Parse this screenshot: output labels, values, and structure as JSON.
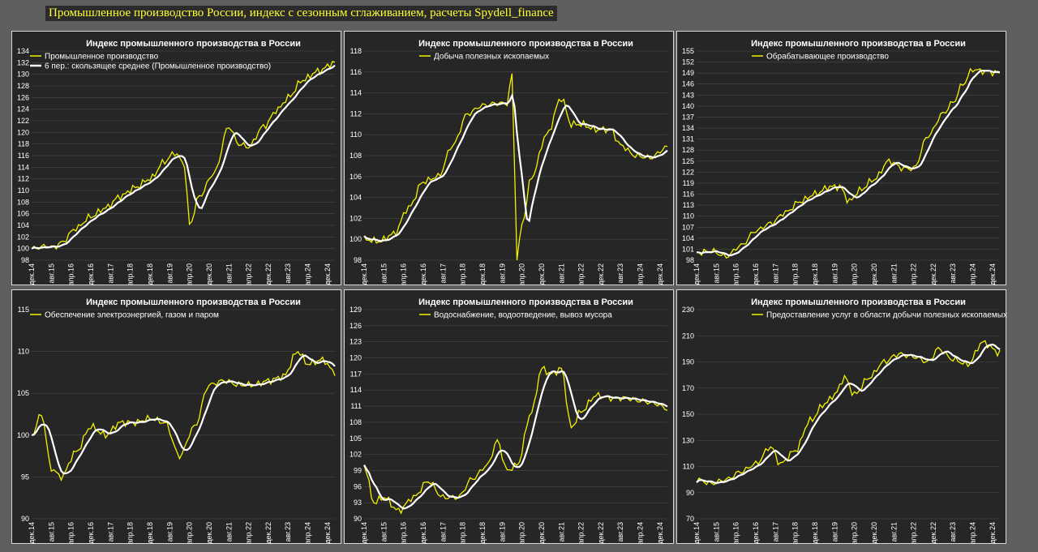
{
  "header": {
    "title": "Промышленное производство России, индекс с сезонным сглаживанием, расчеты Spydell_finance"
  },
  "colors": {
    "actual": "#f2f200",
    "smoothed": "#ffffff",
    "panel_bg": "#262626",
    "page_bg": "#5f5f5f"
  },
  "x_labels": [
    "дек.14",
    "авг.15",
    "апр.16",
    "дек.16",
    "авг.17",
    "апр.18",
    "дек.18",
    "авг.19",
    "апр.20",
    "дек.20",
    "авг.21",
    "апр.22",
    "дек.22",
    "авг.23",
    "апр.24",
    "дек.24"
  ],
  "chart_data": [
    {
      "type": "line",
      "title": "Индекс промышленного производства в России",
      "ylim": [
        98,
        134
      ],
      "yticks": [
        98,
        100,
        102,
        104,
        106,
        108,
        110,
        112,
        114,
        116,
        118,
        120,
        122,
        124,
        126,
        128,
        130,
        132,
        134
      ],
      "legend": [
        "Промышленное производство",
        "6 пер.: скользящее среднее (Промышленное производство)"
      ],
      "x_start": "2014-12",
      "x_end": "2025-03",
      "keypoints": [
        [
          0,
          100
        ],
        [
          6,
          100.4
        ],
        [
          9,
          100.2
        ],
        [
          12,
          101
        ],
        [
          18,
          103.5
        ],
        [
          24,
          105.5
        ],
        [
          30,
          107
        ],
        [
          36,
          109
        ],
        [
          42,
          110.5
        ],
        [
          48,
          112
        ],
        [
          54,
          115
        ],
        [
          58,
          116.5
        ],
        [
          62,
          114.5
        ],
        [
          64,
          104
        ],
        [
          68,
          109
        ],
        [
          74,
          113
        ],
        [
          80,
          121
        ],
        [
          84,
          118
        ],
        [
          88,
          117.5
        ],
        [
          94,
          121
        ],
        [
          100,
          124
        ],
        [
          104,
          126
        ],
        [
          110,
          129
        ],
        [
          116,
          130.5
        ],
        [
          123,
          132
        ]
      ]
    },
    {
      "type": "line",
      "title": "Индекс промышленного производства в России",
      "ylim": [
        98,
        118
      ],
      "yticks": [
        98,
        100,
        102,
        104,
        106,
        108,
        110,
        112,
        114,
        116,
        118
      ],
      "legend": [
        "Добыча полезных ископаемых"
      ],
      "x_start": "2014-12",
      "x_end": "2025-03",
      "keypoints": [
        [
          0,
          100
        ],
        [
          6,
          99.8
        ],
        [
          12,
          100.5
        ],
        [
          18,
          103
        ],
        [
          24,
          105.5
        ],
        [
          30,
          106
        ],
        [
          36,
          109
        ],
        [
          42,
          112
        ],
        [
          48,
          112.8
        ],
        [
          54,
          113
        ],
        [
          58,
          113
        ],
        [
          60,
          115.8
        ],
        [
          62,
          98
        ],
        [
          64,
          101.5
        ],
        [
          68,
          106
        ],
        [
          74,
          110
        ],
        [
          80,
          113.5
        ],
        [
          84,
          111
        ],
        [
          88,
          111
        ],
        [
          94,
          110.5
        ],
        [
          100,
          110.5
        ],
        [
          104,
          109
        ],
        [
          110,
          108
        ],
        [
          116,
          107.8
        ],
        [
          123,
          108.8
        ]
      ]
    },
    {
      "type": "line",
      "title": "Индекс промышленного производства в России",
      "ylim": [
        98,
        155
      ],
      "yticks": [
        98,
        101,
        104,
        107,
        110,
        113,
        116,
        119,
        122,
        125,
        128,
        131,
        134,
        137,
        140,
        143,
        146,
        149,
        152,
        155
      ],
      "legend": [
        "Обрабатывающее производство"
      ],
      "x_start": "2014-12",
      "x_end": "2025-03",
      "keypoints": [
        [
          0,
          100
        ],
        [
          6,
          100.5
        ],
        [
          12,
          99
        ],
        [
          18,
          102
        ],
        [
          24,
          106
        ],
        [
          30,
          108
        ],
        [
          36,
          111
        ],
        [
          42,
          114
        ],
        [
          48,
          116
        ],
        [
          54,
          118
        ],
        [
          58,
          118
        ],
        [
          62,
          114
        ],
        [
          66,
          117
        ],
        [
          72,
          120
        ],
        [
          78,
          125
        ],
        [
          84,
          123
        ],
        [
          88,
          123
        ],
        [
          94,
          132
        ],
        [
          100,
          138
        ],
        [
          104,
          141
        ],
        [
          108,
          146
        ],
        [
          112,
          150
        ],
        [
          116,
          149.5
        ],
        [
          123,
          149
        ]
      ]
    },
    {
      "type": "line",
      "title": "Индекс промышленного производства в России",
      "ylim": [
        90,
        115
      ],
      "yticks": [
        90,
        95,
        100,
        105,
        110,
        115
      ],
      "legend": [
        "Обеспечение электроэнергией, газом и паром"
      ],
      "x_start": "2014-12",
      "x_end": "2025-03",
      "keypoints": [
        [
          0,
          100
        ],
        [
          4,
          102.5
        ],
        [
          8,
          96
        ],
        [
          12,
          95
        ],
        [
          18,
          98
        ],
        [
          24,
          101
        ],
        [
          30,
          100
        ],
        [
          36,
          101.5
        ],
        [
          42,
          101.5
        ],
        [
          48,
          102
        ],
        [
          54,
          101.5
        ],
        [
          60,
          97.5
        ],
        [
          66,
          101
        ],
        [
          72,
          106
        ],
        [
          78,
          106.5
        ],
        [
          84,
          106
        ],
        [
          90,
          106
        ],
        [
          96,
          106.5
        ],
        [
          102,
          107
        ],
        [
          108,
          110
        ],
        [
          112,
          108.5
        ],
        [
          118,
          109
        ],
        [
          123,
          107.5
        ]
      ]
    },
    {
      "type": "line",
      "title": "Индекс промышленного производства в России",
      "ylim": [
        90,
        129
      ],
      "yticks": [
        90,
        93,
        96,
        99,
        102,
        105,
        108,
        111,
        114,
        117,
        120,
        123,
        126,
        129
      ],
      "legend": [
        "Водоснабжение, водоотведение, вывоз мусора"
      ],
      "x_start": "2014-12",
      "x_end": "2025-03",
      "keypoints": [
        [
          0,
          100
        ],
        [
          4,
          93
        ],
        [
          8,
          94
        ],
        [
          14,
          91.5
        ],
        [
          20,
          94
        ],
        [
          26,
          97
        ],
        [
          32,
          94
        ],
        [
          38,
          94
        ],
        [
          44,
          97.5
        ],
        [
          50,
          100
        ],
        [
          54,
          104.5
        ],
        [
          58,
          99
        ],
        [
          62,
          100
        ],
        [
          68,
          110
        ],
        [
          72,
          118
        ],
        [
          76,
          117
        ],
        [
          80,
          118
        ],
        [
          84,
          107
        ],
        [
          88,
          110
        ],
        [
          94,
          113
        ],
        [
          100,
          112.5
        ],
        [
          106,
          112.5
        ],
        [
          112,
          112
        ],
        [
          118,
          111.5
        ],
        [
          123,
          110.5
        ]
      ]
    },
    {
      "type": "line",
      "title": "Индекс промышленного производства в России",
      "ylim": [
        70,
        230
      ],
      "yticks": [
        70,
        90,
        110,
        130,
        150,
        170,
        190,
        210,
        230
      ],
      "legend": [
        "Предоставление услуг в области добычи полезных ископаемых"
      ],
      "x_start": "2014-12",
      "x_end": "2025-03",
      "keypoints": [
        [
          0,
          100
        ],
        [
          6,
          97
        ],
        [
          12,
          100
        ],
        [
          18,
          106
        ],
        [
          24,
          112
        ],
        [
          30,
          125
        ],
        [
          34,
          112
        ],
        [
          40,
          122
        ],
        [
          46,
          145
        ],
        [
          52,
          158
        ],
        [
          56,
          165
        ],
        [
          60,
          178
        ],
        [
          64,
          165
        ],
        [
          70,
          178
        ],
        [
          76,
          190
        ],
        [
          82,
          196
        ],
        [
          88,
          194
        ],
        [
          94,
          190
        ],
        [
          98,
          200
        ],
        [
          104,
          192
        ],
        [
          110,
          188
        ],
        [
          116,
          205
        ],
        [
          123,
          197
        ]
      ]
    }
  ]
}
